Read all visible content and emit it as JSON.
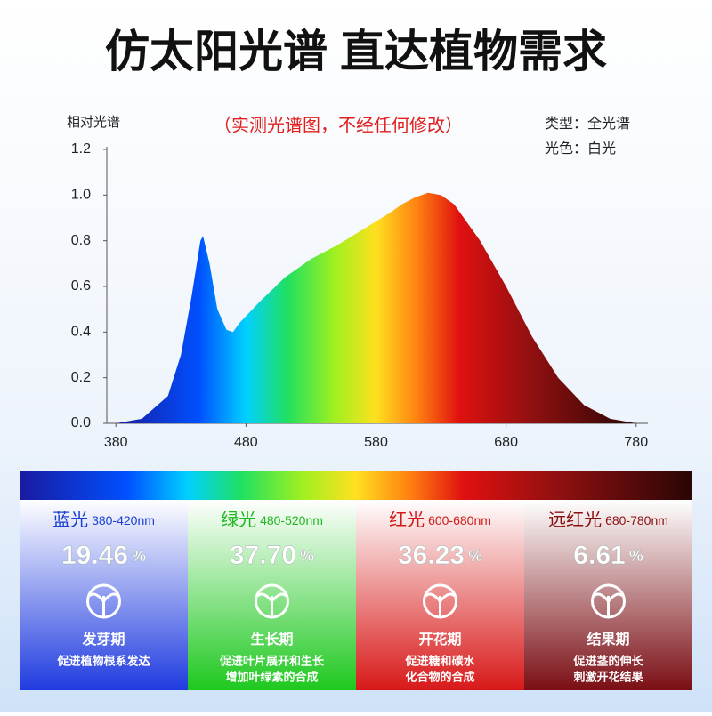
{
  "chart_data": {
    "type": "area",
    "title": "仿太阳光谱 直达植物需求",
    "y_label": "相对光谱",
    "annotation": "（实测光谱图，不经任何修改）",
    "info": [
      "类型：全光谱",
      "光色：白光"
    ],
    "x": [
      380,
      400,
      420,
      430,
      438,
      445,
      447,
      452,
      458,
      465,
      470,
      475,
      490,
      510,
      530,
      550,
      570,
      590,
      600,
      610,
      620,
      630,
      640,
      660,
      680,
      700,
      720,
      740,
      760,
      780
    ],
    "values": [
      0,
      0.02,
      0.12,
      0.3,
      0.55,
      0.8,
      0.82,
      0.7,
      0.5,
      0.41,
      0.4,
      0.44,
      0.53,
      0.64,
      0.72,
      0.78,
      0.85,
      0.92,
      0.96,
      0.99,
      1.01,
      1.0,
      0.96,
      0.8,
      0.6,
      0.38,
      0.2,
      0.08,
      0.02,
      0
    ],
    "xlim": [
      373,
      787
    ],
    "ylim": [
      0,
      1.2
    ],
    "xticks": [
      380,
      480,
      580,
      680,
      780
    ],
    "yticks": [
      {
        "value": 0,
        "label": "0.0"
      },
      {
        "value": 0.2,
        "label": "0.2"
      },
      {
        "value": 0.4,
        "label": "0.4"
      },
      {
        "value": 0.6,
        "label": "0.6"
      },
      {
        "value": 0.8,
        "label": "0.8"
      },
      {
        "value": 1,
        "label": "1.0"
      },
      {
        "value": 1.2,
        "label": "1.2"
      }
    ]
  },
  "cards": [
    {
      "name": "蓝光",
      "range": "380-420nm",
      "percent": "19.46",
      "unit": "%",
      "stage": "发芽期",
      "desc": [
        "促进植物根系发达"
      ],
      "color": "#1a3fd0"
    },
    {
      "name": "绿光",
      "range": "480-520nm",
      "percent": "37.70",
      "unit": "%",
      "stage": "生长期",
      "desc": [
        "促进叶片展开和生长",
        "增加叶绿素的合成"
      ],
      "color": "#1fb81f"
    },
    {
      "name": "红光",
      "range": "600-680nm",
      "percent": "36.23",
      "unit": "%",
      "stage": "开花期",
      "desc": [
        "促进糖和碳水",
        "化合物的合成"
      ],
      "color": "#d01a1a"
    },
    {
      "name": "远红光",
      "range": "680-780nm",
      "percent": "6.61",
      "unit": "%",
      "stage": "结果期",
      "desc": [
        "促进茎的伸长",
        "刺激开花结果"
      ],
      "color": "#8a1010"
    }
  ]
}
